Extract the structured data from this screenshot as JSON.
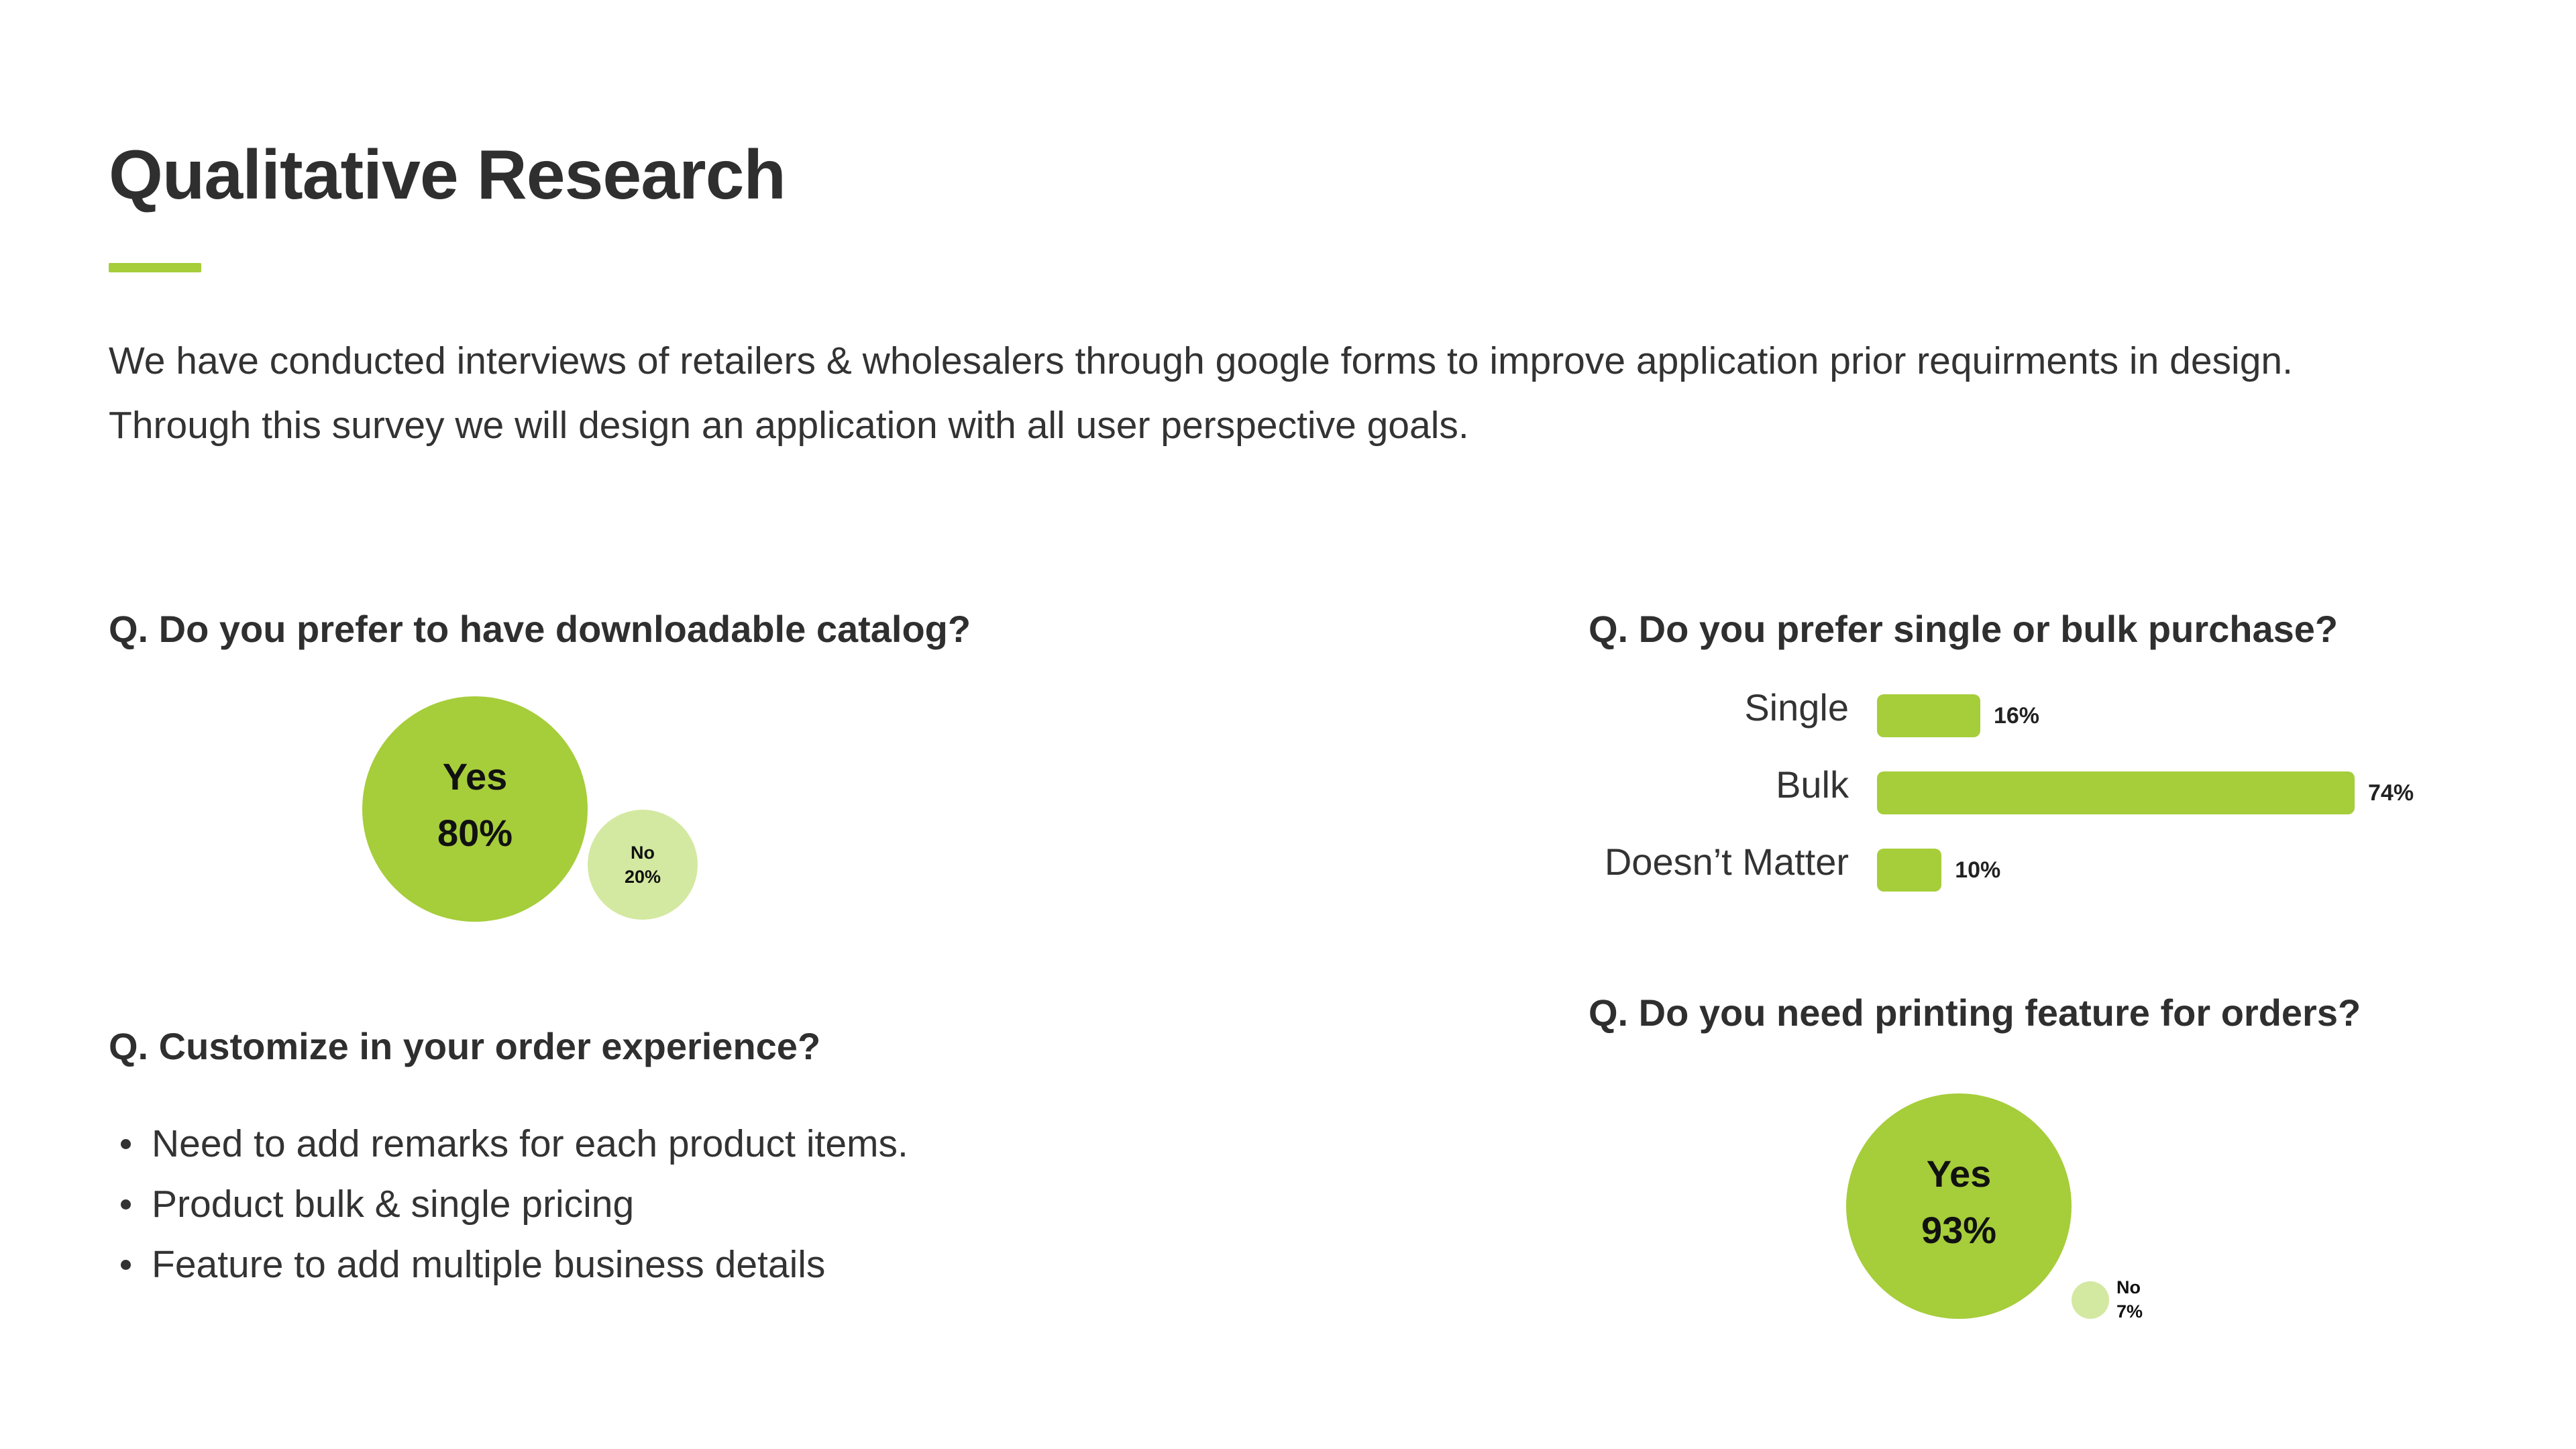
{
  "page": {
    "title": "Qualitative Research",
    "intro_lines": [
      "We have conducted interviews of retailers & wholesalers through google forms to improve application prior requirments in design.",
      "Through this survey we will design an application with all user perspective goals."
    ]
  },
  "colors": {
    "accent": "#a6cd3a",
    "accent_light": "#d3e9a1",
    "text_dark": "#2f2f2f"
  },
  "questions": {
    "catalog": "Q. Do you prefer to have downloadable catalog?",
    "purchase": "Q. Do you prefer single or bulk purchase?",
    "customize": "Q. Customize in your order experience?",
    "printing": "Q. Do you need printing feature for orders?"
  },
  "customize_points": [
    "Need to add remarks for each product items.",
    "Product bulk & single pricing",
    "Feature to add multiple business details"
  ],
  "chart_data": [
    {
      "type": "bubble",
      "title": "Q. Do you prefer to have downloadable catalog?",
      "categories": [
        "Yes",
        "No"
      ],
      "values": [
        80,
        20
      ],
      "value_labels": [
        "80%",
        "20%"
      ]
    },
    {
      "type": "bar",
      "orientation": "horizontal",
      "title": "Q. Do you prefer single or bulk purchase?",
      "categories": [
        "Single",
        "Bulk",
        "Doesn’t Matter"
      ],
      "values": [
        16,
        74,
        10
      ],
      "value_labels": [
        "16%",
        "74%",
        "10%"
      ],
      "xlim": [
        0,
        74
      ]
    },
    {
      "type": "bubble",
      "title": "Q. Do you need printing feature for orders?",
      "categories": [
        "Yes",
        "No"
      ],
      "values": [
        93,
        7
      ],
      "value_labels": [
        "93%",
        "7%"
      ]
    }
  ]
}
